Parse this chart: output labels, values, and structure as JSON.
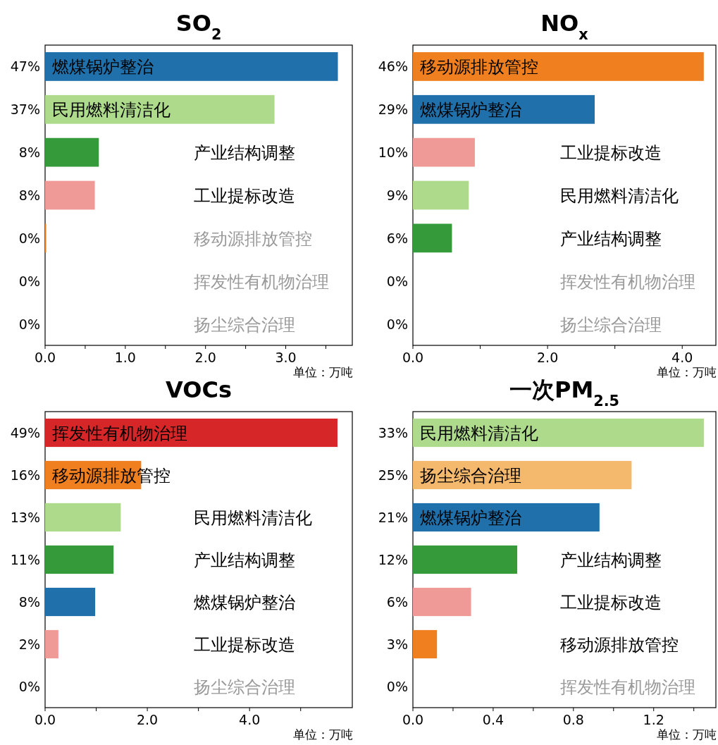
{
  "chart_data": [
    {
      "type": "bar",
      "orientation": "horizontal",
      "title": "SO$_{2}$",
      "xlabel": "单位：万吨",
      "tick_labels": "x",
      "categories": [
        "燃煤锅炉整治",
        "民用燃料清洁化",
        "产业结构调整",
        "工业提标改造",
        "移动源排放管控",
        "挥发性有机物治理",
        "扬尘综合治理"
      ],
      "values": [
        3.65,
        2.86,
        0.67,
        0.62,
        0.01,
        0,
        0
      ],
      "colors": [
        "#2070ab",
        "#addb8b",
        "#359b3a",
        "#f09a98",
        "#ef7f1f",
        null,
        null
      ],
      "annotations": [
        "47%",
        "37%",
        "8%",
        "8%",
        "0%",
        "0%",
        "0%"
      ],
      "xlim": [
        0,
        3.83
      ],
      "xticks": [
        {
          "value": 0,
          "label": "0.0"
        },
        {
          "value": 0.5,
          "label": null
        },
        {
          "value": 1,
          "label": "1.0"
        },
        {
          "value": 1.5,
          "label": null
        },
        {
          "value": 2,
          "label": "2.0"
        },
        {
          "value": 2.5,
          "label": null
        },
        {
          "value": 3,
          "label": "3.0"
        },
        {
          "value": 3.5,
          "label": null
        }
      ]
    },
    {
      "type": "bar",
      "orientation": "horizontal",
      "title": "NO$_{x}$",
      "xlabel": "单位：万吨",
      "tick_labels": "x",
      "categories": [
        "移动源排放管控",
        "燃煤锅炉整治",
        "工业提标改造",
        "民用燃料清洁化",
        "产业结构调整",
        "挥发性有机物治理",
        "扬尘综合治理"
      ],
      "values": [
        4.32,
        2.7,
        0.92,
        0.83,
        0.58,
        0,
        0
      ],
      "colors": [
        "#ef7f1f",
        "#2070ab",
        "#f09a98",
        "#addb8b",
        "#359b3a",
        null,
        null
      ],
      "annotations": [
        "46%",
        "29%",
        "10%",
        "9%",
        "6%",
        "0%",
        "0%"
      ],
      "xlim": [
        0,
        4.5
      ],
      "xticks": [
        {
          "value": 0,
          "label": "0.0"
        },
        {
          "value": 1,
          "label": null
        },
        {
          "value": 2,
          "label": "2.0"
        },
        {
          "value": 3,
          "label": null
        },
        {
          "value": 4,
          "label": "4.0"
        }
      ]
    },
    {
      "type": "bar",
      "orientation": "horizontal",
      "title": "VOCs",
      "xlabel": "单位：万吨",
      "tick_labels": "x",
      "categories": [
        "挥发性有机物治理",
        "移动源排放管控",
        "民用燃料清洁化",
        "产业结构调整",
        "燃煤锅炉整治",
        "工业提标改造",
        "扬尘综合治理"
      ],
      "values": [
        5.72,
        1.88,
        1.48,
        1.34,
        0.98,
        0.26,
        0
      ],
      "colors": [
        "#d62628",
        "#ef7f1f",
        "#addb8b",
        "#359b3a",
        "#2070ab",
        "#f09a98",
        null
      ],
      "annotations": [
        "49%",
        "16%",
        "13%",
        "11%",
        "8%",
        "2%",
        "0%"
      ],
      "xlim": [
        0,
        6.01
      ],
      "xticks": [
        {
          "value": 0,
          "label": "0.0"
        },
        {
          "value": 1,
          "label": null
        },
        {
          "value": 2,
          "label": "2.0"
        },
        {
          "value": 3,
          "label": null
        },
        {
          "value": 4,
          "label": "4.0"
        },
        {
          "value": 5,
          "label": null
        }
      ]
    },
    {
      "type": "bar",
      "orientation": "horizontal",
      "title": "一次PM$_{2.5}$",
      "xlabel": "单位：万吨",
      "tick_labels": "x",
      "categories": [
        "民用燃料清洁化",
        "扬尘综合治理",
        "燃煤锅炉整治",
        "产业结构调整",
        "工业提标改造",
        "移动源排放管控",
        "挥发性有机物治理"
      ],
      "values": [
        1.45,
        1.09,
        0.93,
        0.52,
        0.29,
        0.12,
        0
      ],
      "colors": [
        "#addb8b",
        "#f5b96e",
        "#2070ab",
        "#359b3a",
        "#f09a98",
        "#ef7f1f",
        null
      ],
      "annotations": [
        "33%",
        "25%",
        "21%",
        "12%",
        "6%",
        "3%",
        "0%"
      ],
      "xlim": [
        0,
        1.51
      ],
      "xticks": [
        {
          "value": 0,
          "label": "0.0"
        },
        {
          "value": 0.2,
          "label": null
        },
        {
          "value": 0.4,
          "label": "0.4"
        },
        {
          "value": 0.6,
          "label": null
        },
        {
          "value": 0.8,
          "label": "0.8"
        },
        {
          "value": 1.0,
          "label": null
        },
        {
          "value": 1.2,
          "label": "1.2"
        },
        {
          "value": 1.4,
          "label": null
        }
      ]
    }
  ]
}
